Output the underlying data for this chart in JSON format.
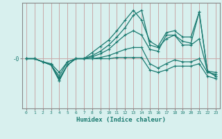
{
  "xlabel": "Humidex (Indice chaleur)",
  "ylabel": "-0",
  "bg_color": "#d8f0ee",
  "line_color": "#1a7a70",
  "grid_color": "#c8a8a8",
  "xlim": [
    -0.5,
    23.5
  ],
  "ylim": [
    -0.8,
    0.9
  ],
  "x": [
    0,
    1,
    2,
    3,
    4,
    5,
    6,
    7,
    8,
    9,
    10,
    11,
    12,
    13,
    14,
    15,
    16,
    17,
    18,
    19,
    20,
    21,
    22,
    23
  ],
  "lines": [
    [
      0.0,
      0.0,
      -0.05,
      -0.1,
      -0.35,
      -0.1,
      0.0,
      0.0,
      0.1,
      0.2,
      0.3,
      0.45,
      0.62,
      0.78,
      0.62,
      0.28,
      0.2,
      0.42,
      0.45,
      0.35,
      0.35,
      0.75,
      -0.2,
      -0.28
    ],
    [
      0.0,
      0.0,
      -0.05,
      -0.1,
      -0.35,
      -0.1,
      0.0,
      0.0,
      0.05,
      0.12,
      0.22,
      0.35,
      0.5,
      0.7,
      0.78,
      0.22,
      0.18,
      0.32,
      0.38,
      0.28,
      0.25,
      0.75,
      -0.2,
      -0.28
    ],
    [
      0.0,
      0.0,
      -0.05,
      -0.1,
      -0.32,
      -0.1,
      0.0,
      0.0,
      0.03,
      0.08,
      0.15,
      0.27,
      0.38,
      0.45,
      0.38,
      0.15,
      0.12,
      0.38,
      0.38,
      0.22,
      0.22,
      0.32,
      -0.2,
      -0.22
    ],
    [
      0.0,
      0.0,
      -0.05,
      -0.1,
      -0.28,
      -0.05,
      0.0,
      0.0,
      0.0,
      0.02,
      0.05,
      0.1,
      0.15,
      0.18,
      0.18,
      -0.08,
      -0.15,
      -0.08,
      -0.02,
      -0.05,
      -0.05,
      0.0,
      -0.22,
      -0.25
    ],
    [
      0.0,
      0.0,
      -0.05,
      -0.08,
      -0.22,
      -0.05,
      0.0,
      0.0,
      0.0,
      0.0,
      0.0,
      0.02,
      0.02,
      0.02,
      0.02,
      -0.18,
      -0.22,
      -0.18,
      -0.12,
      -0.12,
      -0.12,
      -0.08,
      -0.28,
      -0.32
    ]
  ],
  "ytick_positions": [
    0.0
  ],
  "ytick_labels": [
    "-0"
  ]
}
